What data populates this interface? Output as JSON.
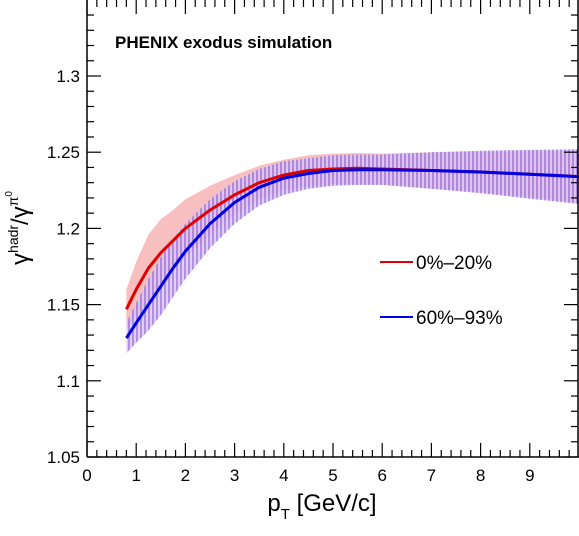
{
  "chart_data": {
    "type": "line",
    "title": "PHENIX exodus simulation",
    "xlabel": {
      "base": "p",
      "sub": "T",
      "rest": " [GeV/c]"
    },
    "ylabel": {
      "num": "γ",
      "num_sup": "hadr",
      "sep": "/",
      "den": "γ",
      "den_sup": "π",
      "den_sup2": "0"
    },
    "xlim": [
      0,
      10
    ],
    "ylim": [
      1.05,
      1.35
    ],
    "x_ticks": [
      0,
      1,
      2,
      3,
      4,
      5,
      6,
      7,
      8,
      9
    ],
    "x_tick_labels": [
      "0",
      "1",
      "2",
      "3",
      "4",
      "5",
      "6",
      "7",
      "8",
      "9"
    ],
    "y_ticks": [
      1.05,
      1.1,
      1.15,
      1.2,
      1.25,
      1.3
    ],
    "y_tick_labels": [
      "1.05",
      "1.1",
      "1.15",
      "1.2",
      "1.25",
      "1.3"
    ],
    "grid": false,
    "legend_position": "right",
    "series": [
      {
        "name": "0%–20%",
        "color": "#e00000",
        "band_color": "#f08080",
        "band_style": "solid",
        "x": [
          0.8,
          1.0,
          1.25,
          1.5,
          1.75,
          2.0,
          2.5,
          3.0,
          3.5,
          4.0,
          4.5,
          5.0,
          5.5,
          6.0,
          7.0,
          8.0,
          9.0,
          10.0
        ],
        "y": [
          1.147,
          1.16,
          1.174,
          1.184,
          1.192,
          1.2,
          1.212,
          1.222,
          1.23,
          1.235,
          1.238,
          1.239,
          1.2395,
          1.239,
          1.238,
          1.237,
          1.2355,
          1.234
        ],
        "err": [
          0.013,
          0.018,
          0.022,
          0.022,
          0.02,
          0.019,
          0.016,
          0.013,
          0.011,
          0.01,
          0.01,
          0.01,
          0.01,
          0.01,
          0.012,
          0.013,
          0.015,
          0.017
        ]
      },
      {
        "name": "60%–93%",
        "color": "#0000e0",
        "band_color": "#8050d0",
        "band_style": "hatched",
        "x": [
          0.8,
          1.0,
          1.25,
          1.5,
          1.75,
          2.0,
          2.5,
          3.0,
          3.5,
          4.0,
          4.5,
          5.0,
          5.5,
          6.0,
          7.0,
          8.0,
          9.0,
          10.0
        ],
        "y": [
          1.128,
          1.138,
          1.15,
          1.162,
          1.174,
          1.185,
          1.203,
          1.217,
          1.227,
          1.233,
          1.236,
          1.238,
          1.2385,
          1.2385,
          1.238,
          1.237,
          1.2355,
          1.234
        ],
        "err": [
          0.01,
          0.013,
          0.017,
          0.019,
          0.019,
          0.018,
          0.016,
          0.014,
          0.012,
          0.011,
          0.01,
          0.01,
          0.01,
          0.01,
          0.012,
          0.014,
          0.016,
          0.018
        ]
      }
    ]
  }
}
